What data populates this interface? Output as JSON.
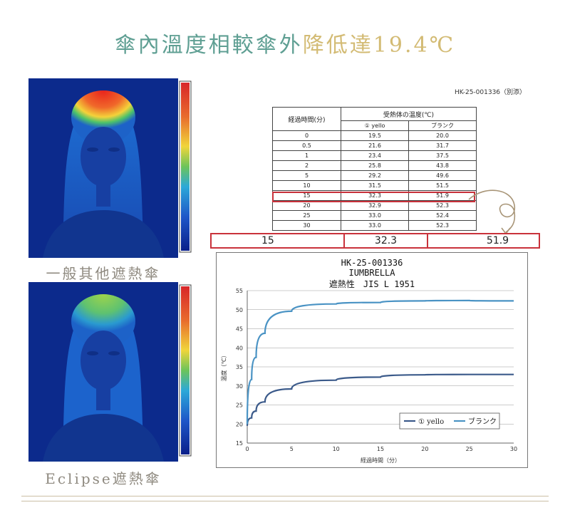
{
  "headline": {
    "part_a": "傘內溫度相較傘外",
    "part_b": "降低達19.4℃"
  },
  "thermal_images": [
    {
      "caption": "一般其他遮熱傘"
    },
    {
      "caption": "Eclipse遮熱傘"
    }
  ],
  "document": {
    "code": "HK-25-001336（別添）",
    "table": {
      "col_time": "経過時間(分)",
      "col_temp_group": "受熱体の温度(℃)",
      "col_yello": "① yello",
      "col_blank": "ブランク",
      "rows": [
        [
          "0",
          "19.5",
          "20.0"
        ],
        [
          "0.5",
          "21.6",
          "31.7"
        ],
        [
          "1",
          "23.4",
          "37.5"
        ],
        [
          "2",
          "25.8",
          "43.8"
        ],
        [
          "5",
          "29.2",
          "49.6"
        ],
        [
          "10",
          "31.5",
          "51.5"
        ],
        [
          "15",
          "32.3",
          "51.9"
        ],
        [
          "20",
          "32.9",
          "52.3"
        ],
        [
          "25",
          "33.0",
          "52.4"
        ],
        [
          "30",
          "33.0",
          "52.3"
        ]
      ]
    },
    "callout": {
      "time": "15",
      "yello": "32.3",
      "blank": "51.9"
    }
  },
  "chart_data": {
    "type": "line",
    "title": [
      "HK-25-001336",
      "IUMBRELLA",
      "遮熱性　JIS L 1951"
    ],
    "xlabel": "経過時間（分）",
    "ylabel": "温度（℃）",
    "xlim": [
      0,
      30
    ],
    "ylim": [
      15,
      55
    ],
    "xticks": [
      "0",
      "5",
      "10",
      "15",
      "20",
      "25",
      "30"
    ],
    "yticks": [
      "15",
      "20",
      "25",
      "30",
      "35",
      "40",
      "45",
      "50",
      "55"
    ],
    "grid": true,
    "legend": "bottom-right",
    "x": [
      0,
      0.5,
      1,
      2,
      5,
      10,
      15,
      20,
      25,
      30
    ],
    "series": [
      {
        "name": "① yello",
        "color": "#3b5a8a",
        "values": [
          19.5,
          21.6,
          23.4,
          25.8,
          29.2,
          31.5,
          32.3,
          32.9,
          33.0,
          33.0
        ]
      },
      {
        "name": "ブランク",
        "color": "#4a93c4",
        "values": [
          20.0,
          31.7,
          37.5,
          43.8,
          49.6,
          51.5,
          51.9,
          52.3,
          52.4,
          52.3
        ]
      }
    ]
  }
}
